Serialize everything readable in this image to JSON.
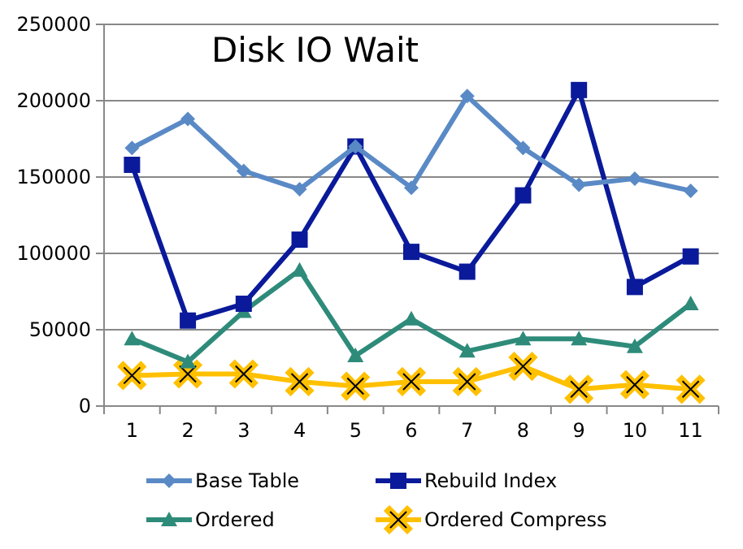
{
  "chart_data": {
    "type": "line",
    "title": "Disk IO Wait",
    "categories": [
      "1",
      "2",
      "3",
      "4",
      "5",
      "6",
      "7",
      "8",
      "9",
      "10",
      "11"
    ],
    "series": [
      {
        "name": "Base Table",
        "color": "#5a8ac6",
        "marker": "diamond",
        "values": [
          169000,
          188000,
          154000,
          142000,
          170000,
          143000,
          203000,
          169000,
          145000,
          149000,
          141000
        ]
      },
      {
        "name": "Rebuild Index",
        "color": "#0a1a9a",
        "marker": "square",
        "values": [
          158000,
          56000,
          67000,
          109000,
          170000,
          101000,
          88000,
          138000,
          207000,
          78000,
          98000
        ]
      },
      {
        "name": "Ordered",
        "color": "#2e8b7a",
        "marker": "triangle",
        "values": [
          44000,
          29000,
          62000,
          89000,
          33000,
          57000,
          36000,
          44000,
          44000,
          39000,
          67000
        ]
      },
      {
        "name": "Ordered Compress",
        "color": "#ffc000",
        "marker": "cross",
        "values": [
          20000,
          21000,
          21000,
          16000,
          13000,
          16000,
          16000,
          26000,
          11000,
          14000,
          11000
        ]
      }
    ],
    "ylim": [
      0,
      250000
    ],
    "yticks": [
      0,
      50000,
      100000,
      150000,
      200000,
      250000
    ],
    "grid": "y",
    "legend": "bottom"
  }
}
